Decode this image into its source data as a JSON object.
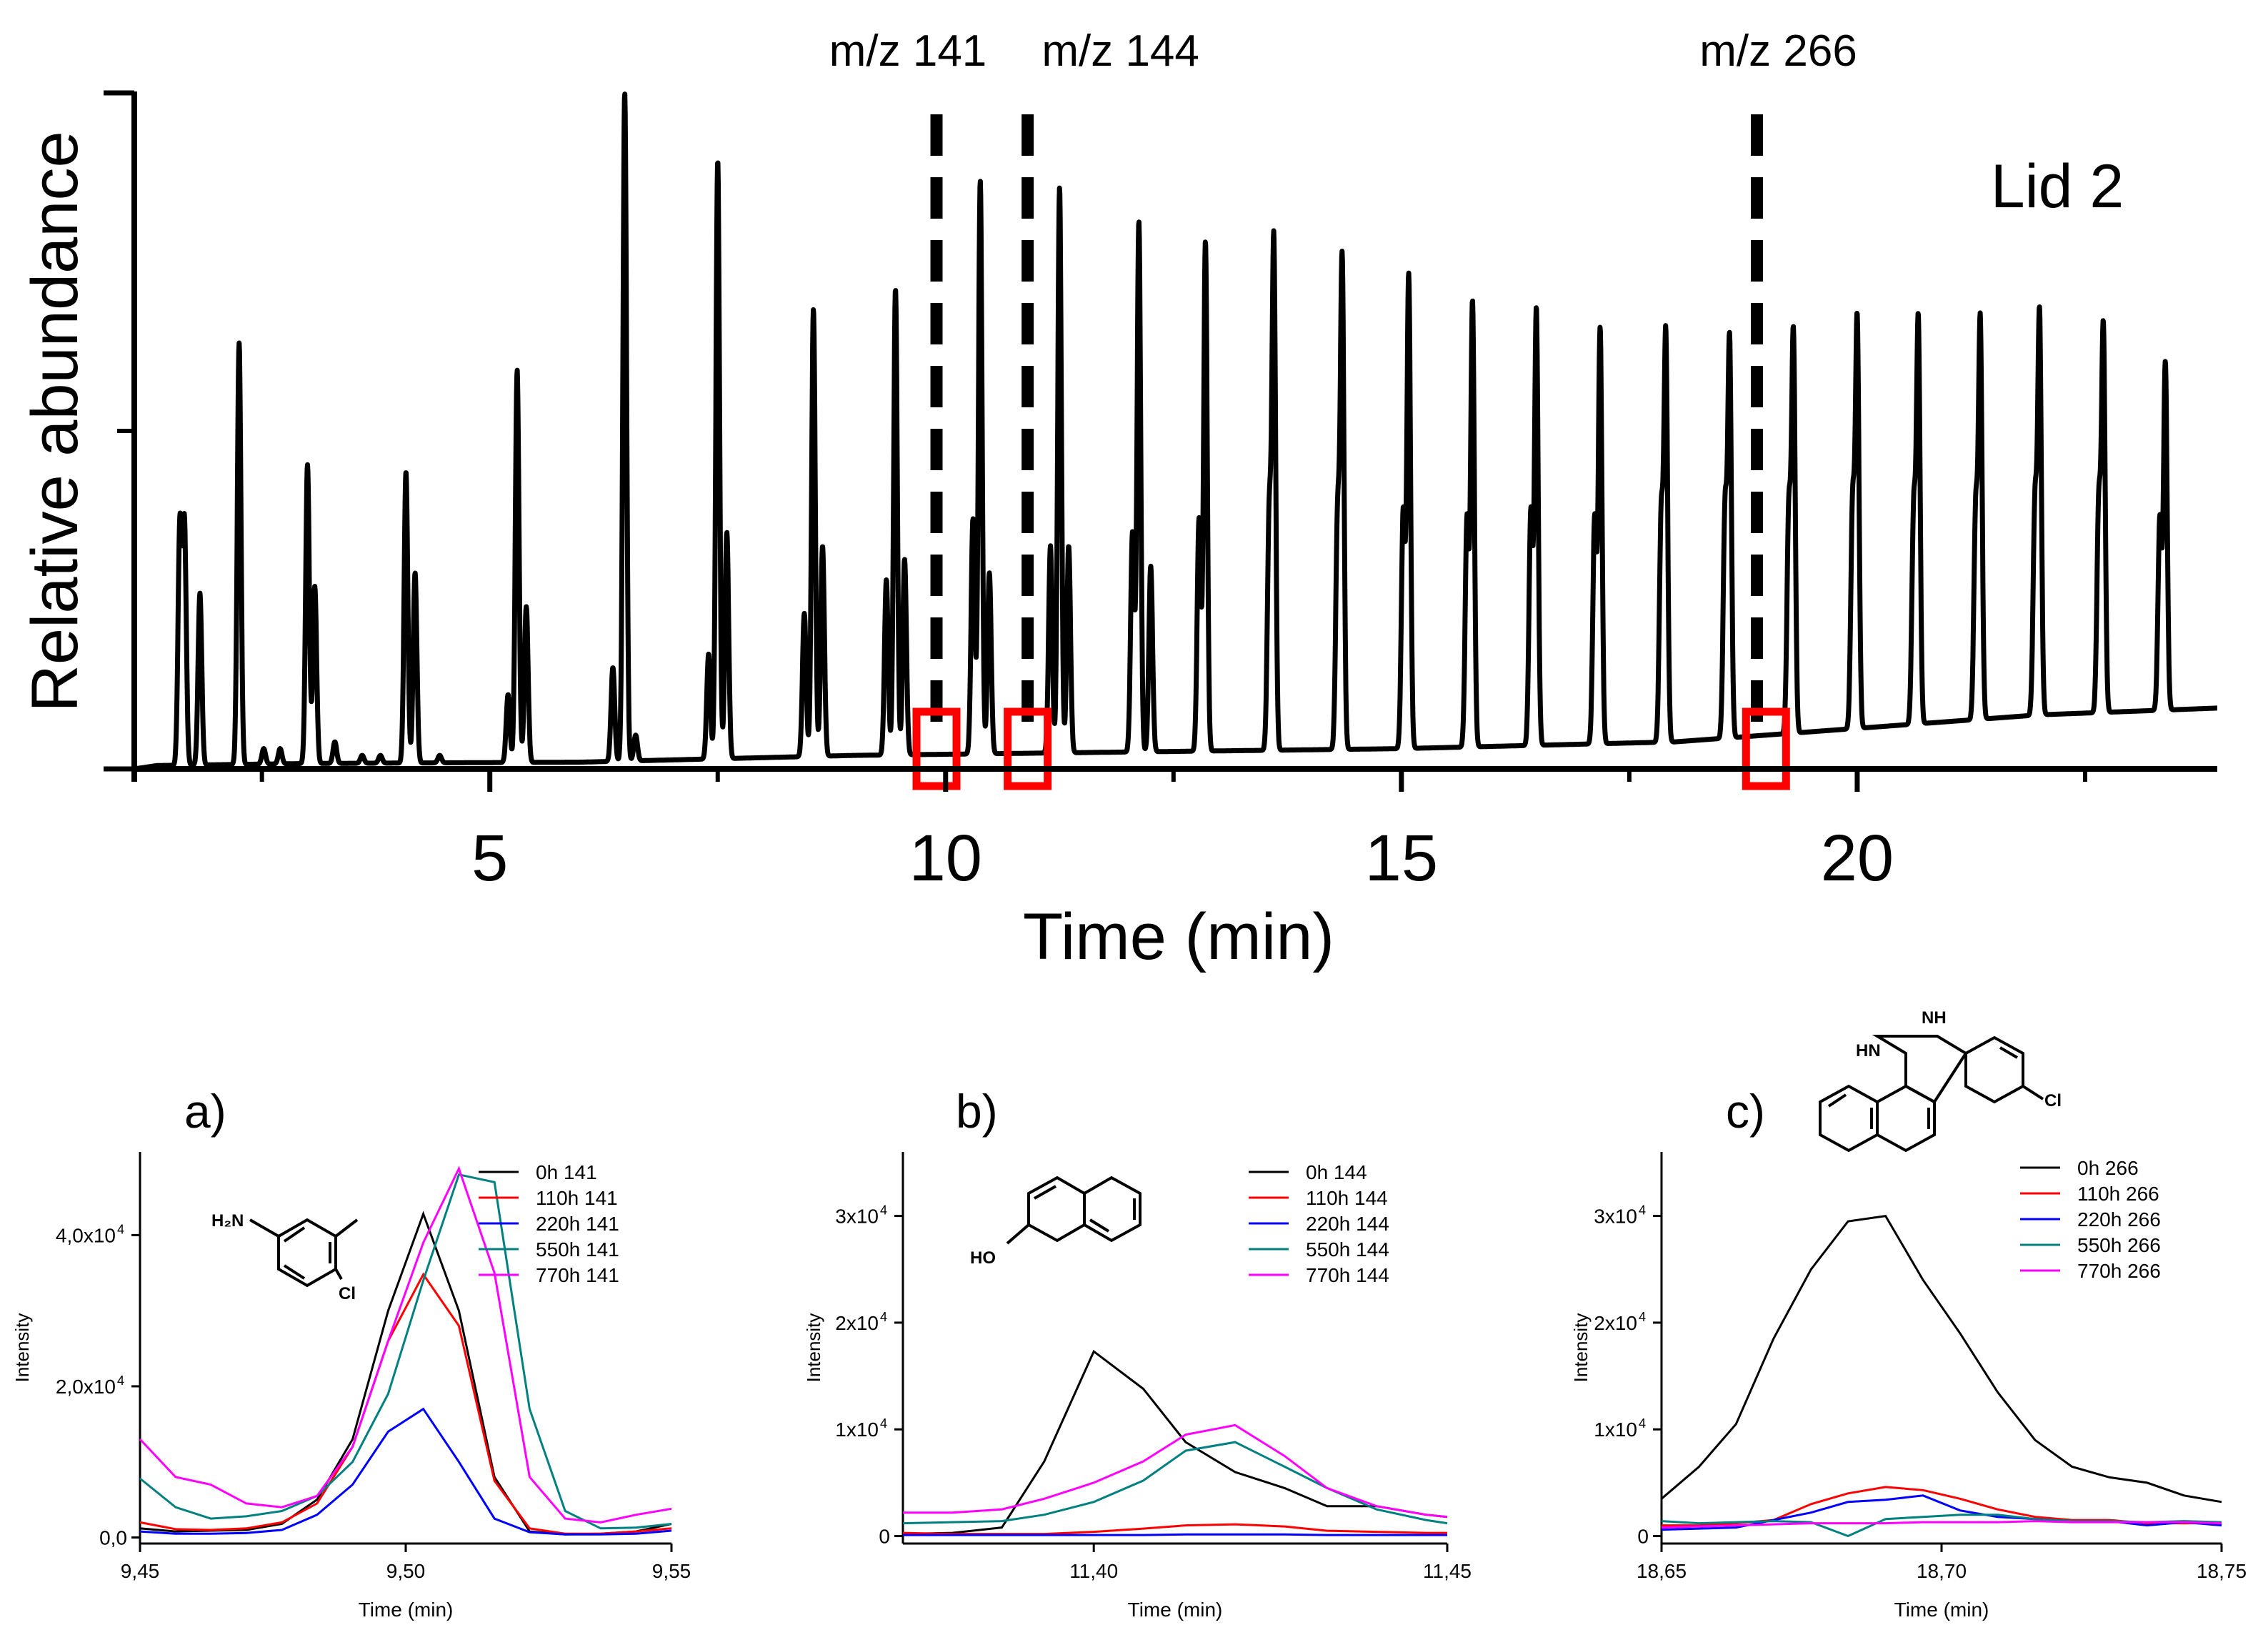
{
  "chart_data": [
    {
      "type": "line",
      "xlabel": "Time (min)",
      "ylabel": "Relative abundance",
      "annotation": "Lid 2",
      "xlim": [
        1.1,
        23.95
      ],
      "xticks": [
        "5",
        "10",
        "15",
        "20"
      ],
      "xtick_values": [
        5,
        10,
        15,
        20
      ],
      "ylim": [
        0,
        1
      ],
      "markers": [
        {
          "label": "m/z 141",
          "x": 9.9
        },
        {
          "label": "m/z 144",
          "x": 10.9
        },
        {
          "label": "m/z 266",
          "x": 18.9
        }
      ],
      "highlight_boxes_x": [
        9.9,
        10.9,
        19.0
      ],
      "baseline": [
        [
          1.1,
          0.0
        ],
        [
          1.35,
          0.005
        ],
        [
          3,
          0.008
        ],
        [
          6,
          0.01
        ],
        [
          9,
          0.02
        ],
        [
          12,
          0.025
        ],
        [
          15,
          0.03
        ],
        [
          18,
          0.04
        ],
        [
          20,
          0.06
        ],
        [
          22,
          0.08
        ],
        [
          23.95,
          0.09
        ]
      ],
      "peaks": [
        {
          "x": 1.6,
          "y": 0.36
        },
        {
          "x": 1.65,
          "y": 0.36
        },
        {
          "x": 1.82,
          "y": 0.26
        },
        {
          "x": 2.25,
          "y": 0.63
        },
        {
          "x": 2.52,
          "y": 0.03
        },
        {
          "x": 2.7,
          "y": 0.03
        },
        {
          "x": 3.0,
          "y": 0.45
        },
        {
          "x": 3.08,
          "y": 0.27
        },
        {
          "x": 3.3,
          "y": 0.04
        },
        {
          "x": 3.6,
          "y": 0.02
        },
        {
          "x": 3.8,
          "y": 0.02
        },
        {
          "x": 4.08,
          "y": 0.44
        },
        {
          "x": 4.18,
          "y": 0.29
        },
        {
          "x": 4.45,
          "y": 0.02
        },
        {
          "x": 5.2,
          "y": 0.11
        },
        {
          "x": 5.3,
          "y": 0.59
        },
        {
          "x": 5.4,
          "y": 0.24
        },
        {
          "x": 6.35,
          "y": 0.15
        },
        {
          "x": 6.48,
          "y": 1.0
        },
        {
          "x": 6.6,
          "y": 0.05
        },
        {
          "x": 7.4,
          "y": 0.17
        },
        {
          "x": 7.5,
          "y": 0.9
        },
        {
          "x": 7.6,
          "y": 0.35
        },
        {
          "x": 8.45,
          "y": 0.23
        },
        {
          "x": 8.55,
          "y": 0.68
        },
        {
          "x": 8.65,
          "y": 0.33
        },
        {
          "x": 9.35,
          "y": 0.28
        },
        {
          "x": 9.45,
          "y": 0.71
        },
        {
          "x": 9.55,
          "y": 0.31
        },
        {
          "x": 10.3,
          "y": 0.37
        },
        {
          "x": 10.38,
          "y": 0.87
        },
        {
          "x": 10.48,
          "y": 0.29
        },
        {
          "x": 11.15,
          "y": 0.33
        },
        {
          "x": 11.25,
          "y": 0.86
        },
        {
          "x": 11.35,
          "y": 0.33
        },
        {
          "x": 12.05,
          "y": 0.35
        },
        {
          "x": 12.12,
          "y": 0.81
        },
        {
          "x": 12.25,
          "y": 0.3
        },
        {
          "x": 12.78,
          "y": 0.37
        },
        {
          "x": 12.85,
          "y": 0.78
        },
        {
          "x": 13.55,
          "y": 0.37
        },
        {
          "x": 13.6,
          "y": 0.78
        },
        {
          "x": 14.3,
          "y": 0.37
        },
        {
          "x": 14.35,
          "y": 0.75
        },
        {
          "x": 15.02,
          "y": 0.38
        },
        {
          "x": 15.08,
          "y": 0.73
        },
        {
          "x": 15.72,
          "y": 0.37
        },
        {
          "x": 15.78,
          "y": 0.69
        },
        {
          "x": 16.42,
          "y": 0.38
        },
        {
          "x": 16.48,
          "y": 0.68
        },
        {
          "x": 17.12,
          "y": 0.37
        },
        {
          "x": 17.18,
          "y": 0.65
        },
        {
          "x": 17.85,
          "y": 0.37
        },
        {
          "x": 17.9,
          "y": 0.64
        },
        {
          "x": 18.55,
          "y": 0.38
        },
        {
          "x": 18.6,
          "y": 0.63
        },
        {
          "x": 19.25,
          "y": 0.38
        },
        {
          "x": 19.3,
          "y": 0.64
        },
        {
          "x": 19.95,
          "y": 0.39
        },
        {
          "x": 20.0,
          "y": 0.66
        },
        {
          "x": 20.62,
          "y": 0.38
        },
        {
          "x": 20.67,
          "y": 0.66
        },
        {
          "x": 21.3,
          "y": 0.38
        },
        {
          "x": 21.35,
          "y": 0.66
        },
        {
          "x": 21.95,
          "y": 0.39
        },
        {
          "x": 22.0,
          "y": 0.67
        },
        {
          "x": 22.65,
          "y": 0.39
        },
        {
          "x": 22.7,
          "y": 0.65
        },
        {
          "x": 23.32,
          "y": 0.37
        },
        {
          "x": 23.38,
          "y": 0.6
        }
      ]
    },
    {
      "type": "line",
      "panel_label": "a)",
      "xlabel": "Time (min)",
      "ylabel": "Intensity",
      "xlim": [
        9.45,
        9.55
      ],
      "ylim": [
        -800,
        51000
      ],
      "xticks": [
        "9,45",
        "9,50",
        "9,55"
      ],
      "xtick_values": [
        9.45,
        9.5,
        9.55
      ],
      "yticks": [
        "0,0",
        "2,0x10",
        "4,0x10"
      ],
      "ytick_sup": [
        "",
        "4",
        "4"
      ],
      "ytick_values": [
        0,
        20000,
        40000
      ],
      "molecule_label_1": "H₂N",
      "molecule_label_2": "Cl",
      "x": [
        9.45,
        9.4567,
        9.4633,
        9.47,
        9.4767,
        9.4833,
        9.49,
        9.4967,
        9.5033,
        9.51,
        9.5167,
        9.5233,
        9.53,
        9.5367,
        9.5433,
        9.55
      ],
      "series": [
        {
          "name": "0h 141",
          "color": "#000000",
          "values": [
            1200,
            800,
            900,
            1000,
            1800,
            5000,
            13000,
            30000,
            42800,
            30000,
            8000,
            800,
            400,
            500,
            800,
            1800
          ]
        },
        {
          "name": "110h 141",
          "color": "#ff0000",
          "values": [
            2000,
            1100,
            1000,
            1200,
            2000,
            4500,
            12000,
            26000,
            34800,
            28000,
            7500,
            1200,
            500,
            500,
            800,
            1200
          ]
        },
        {
          "name": "220h 141",
          "color": "#0000ff",
          "values": [
            800,
            500,
            500,
            600,
            1000,
            3000,
            7000,
            14000,
            17000,
            10000,
            2500,
            700,
            400,
            400,
            500,
            900
          ]
        },
        {
          "name": "550h 141",
          "color": "#008080",
          "values": [
            7800,
            4000,
            2500,
            2800,
            3500,
            5500,
            10000,
            19000,
            34000,
            48000,
            47000,
            17000,
            3500,
            1200,
            1300,
            1800
          ]
        },
        {
          "name": "770h 141",
          "color": "#ff00ff",
          "values": [
            13000,
            8000,
            7000,
            4500,
            4000,
            5500,
            12000,
            26000,
            39000,
            48800,
            35000,
            8000,
            2500,
            2000,
            3000,
            3800
          ]
        }
      ]
    },
    {
      "type": "line",
      "panel_label": "b)",
      "xlabel": "Time (min)",
      "ylabel": "Intensity",
      "xlim": [
        11.373,
        11.45
      ],
      "ylim": [
        -700,
        36000
      ],
      "xticks": [
        "11,40",
        "11,45"
      ],
      "xtick_values": [
        11.4,
        11.45
      ],
      "yticks": [
        "0",
        "1x10",
        "2x10",
        "3x10"
      ],
      "ytick_sup": [
        "",
        "4",
        "4",
        "4"
      ],
      "ytick_values": [
        0,
        10000,
        20000,
        30000
      ],
      "molecule_label_1": "HO",
      "x": [
        11.373,
        11.38,
        11.387,
        11.393,
        11.4,
        11.407,
        11.413,
        11.42,
        11.427,
        11.433,
        11.44,
        11.447,
        11.45
      ],
      "series": [
        {
          "name": "0h 144",
          "color": "#000000",
          "values": [
            200,
            300,
            800,
            7000,
            17300,
            13800,
            8800,
            6000,
            4500,
            2800,
            2800,
            2000,
            1800
          ]
        },
        {
          "name": "110h 144",
          "color": "#ff0000",
          "values": [
            300,
            200,
            200,
            200,
            400,
            700,
            1000,
            1100,
            900,
            500,
            400,
            300,
            300
          ]
        },
        {
          "name": "220h 144",
          "color": "#0000ff",
          "values": [
            100,
            100,
            100,
            100,
            100,
            100,
            150,
            150,
            150,
            100,
            100,
            100,
            100
          ]
        },
        {
          "name": "550h 144",
          "color": "#008080",
          "values": [
            1200,
            1300,
            1400,
            2000,
            3200,
            5200,
            8000,
            8800,
            6500,
            4500,
            2500,
            1500,
            1200
          ]
        },
        {
          "name": "770h 144",
          "color": "#ff00ff",
          "values": [
            2200,
            2200,
            2500,
            3500,
            5000,
            7000,
            9500,
            10400,
            7500,
            4500,
            2800,
            2000,
            1800
          ]
        }
      ]
    },
    {
      "type": "line",
      "panel_label": "c)",
      "xlabel": "Time (min)",
      "ylabel": "Intensity",
      "xlim": [
        18.65,
        18.75
      ],
      "ylim": [
        -700,
        36000
      ],
      "xticks": [
        "18,65",
        "18,70",
        "18,75"
      ],
      "xtick_values": [
        18.65,
        18.7,
        18.75
      ],
      "yticks": [
        "0",
        "1x10",
        "2x10",
        "3x10"
      ],
      "ytick_sup": [
        "",
        "4",
        "4",
        "4"
      ],
      "ytick_values": [
        0,
        10000,
        20000,
        30000
      ],
      "molecule_label_1": "HN",
      "molecule_label_2": "NH",
      "molecule_label_3": "Cl",
      "x": [
        18.65,
        18.6567,
        18.6633,
        18.67,
        18.6767,
        18.6833,
        18.69,
        18.6967,
        18.7033,
        18.71,
        18.7167,
        18.7233,
        18.73,
        18.7367,
        18.7433,
        18.75
      ],
      "series": [
        {
          "name": "0h 266",
          "color": "#000000",
          "values": [
            3500,
            6500,
            10500,
            18500,
            25000,
            29500,
            30000,
            24000,
            19000,
            13500,
            9000,
            6500,
            5500,
            5000,
            3800,
            3200
          ]
        },
        {
          "name": "110h 266",
          "color": "#ff0000",
          "values": [
            1000,
            1000,
            1200,
            1500,
            3000,
            4000,
            4600,
            4300,
            3500,
            2500,
            1800,
            1500,
            1500,
            1200,
            1200,
            1200
          ]
        },
        {
          "name": "220h 266",
          "color": "#0000ff",
          "values": [
            600,
            700,
            800,
            1500,
            2200,
            3200,
            3400,
            3800,
            2400,
            1800,
            1600,
            1400,
            1400,
            1000,
            1300,
            1000
          ]
        },
        {
          "name": "550h 266",
          "color": "#008080",
          "values": [
            1400,
            1200,
            1300,
            1400,
            1300,
            0,
            1600,
            1800,
            2000,
            2000,
            1600,
            1400,
            1400,
            1300,
            1400,
            1300
          ]
        },
        {
          "name": "770h 266",
          "color": "#ff00ff",
          "values": [
            800,
            900,
            1000,
            1100,
            1200,
            1200,
            1200,
            1300,
            1300,
            1300,
            1400,
            1300,
            1300,
            1300,
            1300,
            1200
          ]
        }
      ]
    }
  ]
}
